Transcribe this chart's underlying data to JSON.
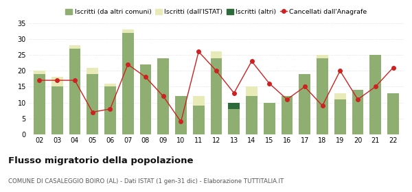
{
  "years": [
    "02",
    "03",
    "04",
    "05",
    "06",
    "07",
    "08",
    "09",
    "10",
    "11",
    "12",
    "13",
    "14",
    "15",
    "16",
    "17",
    "18",
    "19",
    "20",
    "21",
    "22"
  ],
  "iscritti_comuni": [
    19,
    15,
    27,
    19,
    15,
    32,
    22,
    24,
    12,
    9,
    24,
    8,
    12,
    10,
    12,
    19,
    24,
    11,
    14,
    25,
    13
  ],
  "iscritti_estero": [
    1,
    3,
    1,
    2,
    1,
    1,
    0,
    0,
    0,
    3,
    2,
    0,
    3,
    0,
    0,
    0,
    1,
    2,
    0,
    0,
    0
  ],
  "iscritti_altri": [
    0,
    0,
    0,
    0,
    0,
    0,
    0,
    0,
    0,
    0,
    0,
    2,
    0,
    0,
    0,
    0,
    0,
    0,
    0,
    0,
    0
  ],
  "cancellati": [
    17,
    17,
    17,
    7,
    8,
    22,
    18,
    12,
    4,
    26,
    20,
    13,
    23,
    16,
    11,
    15,
    9,
    20,
    11,
    15,
    21
  ],
  "color_comuni": "#8faf72",
  "color_estero": "#e8ebb8",
  "color_altri": "#2d6b3c",
  "color_cancellati": "#cc2222",
  "ylim": [
    0,
    35
  ],
  "yticks": [
    0,
    5,
    10,
    15,
    20,
    25,
    30,
    35
  ],
  "title": "Flusso migratorio della popolazione",
  "subtitle": "COMUNE DI CASALEGGIO BOIRO (AL) - Dati ISTAT (1 gen-31 dic) - Elaborazione TUTTITALIA.IT",
  "legend_labels": [
    "Iscritti (da altri comuni)",
    "Iscritti (dall'ISTAT)",
    "Iscritti (altri)",
    "Cancellati dall'Anagrafe"
  ],
  "background_color": "#ffffff",
  "grid_color": "#d0d0d0"
}
